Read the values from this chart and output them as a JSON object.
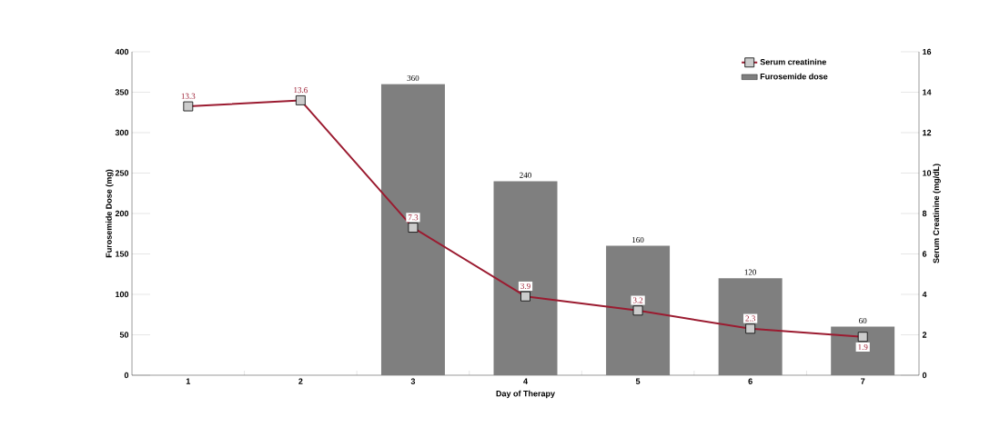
{
  "chart_data": {
    "type": "bar",
    "categories": [
      "1",
      "2",
      "3",
      "4",
      "5",
      "6",
      "7"
    ],
    "xlabel": "Day of Therapy",
    "ylabel": "Furosemide Dose (mg)",
    "y2label": "Serum Creatinine (mg/dL)",
    "series": [
      {
        "name": "Serum creatinine",
        "type": "line",
        "axis": "y2",
        "color": "#9b1b30",
        "marker": "square",
        "values": [
          13.3,
          13.6,
          7.3,
          3.9,
          3.2,
          2.3,
          1.9
        ]
      },
      {
        "name": "Furosemide dose",
        "color": "#7f7f7f",
        "values": [
          null,
          null,
          360,
          240,
          160,
          120,
          60
        ]
      }
    ],
    "ylim": [
      0,
      400
    ],
    "yticks": [
      0,
      50,
      100,
      150,
      200,
      250,
      300,
      350,
      400
    ],
    "y2lim": [
      0,
      16
    ],
    "y2ticks": [
      0,
      2,
      4,
      6,
      8,
      10,
      12,
      14,
      16
    ],
    "data_labels": true,
    "legend": "top right"
  }
}
